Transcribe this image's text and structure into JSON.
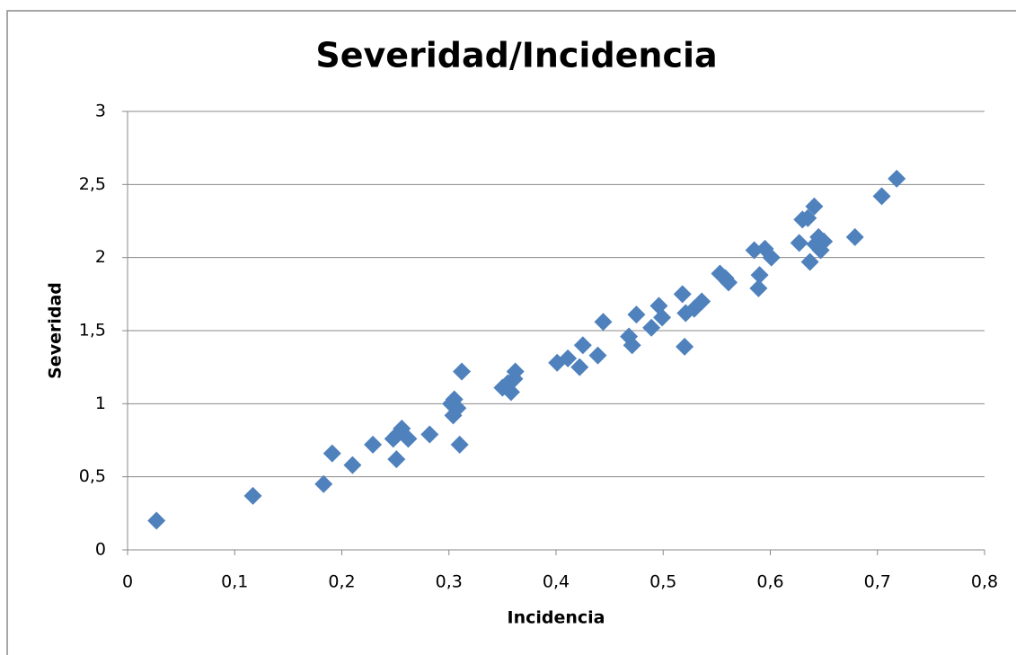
{
  "chart_data": {
    "type": "scatter",
    "title": "Severidad/Incidencia",
    "xlabel": "Incidencia",
    "ylabel": "Severidad",
    "color": "#4f81bd",
    "grid": true,
    "x": [
      0.027,
      0.117,
      0.183,
      0.191,
      0.21,
      0.229,
      0.248,
      0.251,
      0.252,
      0.256,
      0.262,
      0.282,
      0.302,
      0.305,
      0.304,
      0.308,
      0.31,
      0.312,
      0.35,
      0.355,
      0.358,
      0.361,
      0.362,
      0.401,
      0.411,
      0.422,
      0.425,
      0.439,
      0.444,
      0.468,
      0.471,
      0.475,
      0.489,
      0.496,
      0.499,
      0.518,
      0.52,
      0.521,
      0.529,
      0.536,
      0.553,
      0.558,
      0.561,
      0.585,
      0.589,
      0.59,
      0.595,
      0.601,
      0.627,
      0.63,
      0.635,
      0.637,
      0.641,
      0.642,
      0.645,
      0.647,
      0.65,
      0.679,
      0.704,
      0.718
    ],
    "values": [
      0.2,
      0.37,
      0.45,
      0.66,
      0.58,
      0.72,
      0.76,
      0.62,
      0.79,
      0.83,
      0.76,
      0.79,
      1.0,
      1.03,
      0.92,
      0.97,
      0.72,
      1.22,
      1.11,
      1.14,
      1.08,
      1.17,
      1.22,
      1.28,
      1.31,
      1.25,
      1.4,
      1.33,
      1.56,
      1.46,
      1.4,
      1.61,
      1.52,
      1.67,
      1.59,
      1.75,
      1.39,
      1.62,
      1.65,
      1.7,
      1.89,
      1.86,
      1.83,
      2.05,
      1.79,
      1.88,
      2.06,
      2.0,
      2.1,
      2.26,
      2.27,
      1.97,
      2.35,
      2.09,
      2.14,
      2.05,
      2.11,
      2.14,
      2.42,
      2.54
    ],
    "xlim": [
      0,
      0.8
    ],
    "xticks": [
      0,
      {
        "value": 0.1,
        "label": "0,1"
      },
      {
        "value": 0.2,
        "label": "0,2"
      },
      {
        "value": 0.3,
        "label": "0,3"
      },
      {
        "value": 0.4,
        "label": "0,4"
      },
      {
        "value": 0.5,
        "label": "0,5"
      },
      {
        "value": 0.6,
        "label": "0,6"
      },
      {
        "value": 0.7,
        "label": "0,7"
      },
      {
        "value": 0.8,
        "label": "0,8"
      }
    ],
    "ylim": [
      0,
      3
    ],
    "yticks": [
      0,
      {
        "value": 0.5,
        "label": "0,5"
      },
      1,
      {
        "value": 1.5,
        "label": "1,5"
      },
      2,
      {
        "value": 2.5,
        "label": "2,5"
      },
      3
    ]
  }
}
